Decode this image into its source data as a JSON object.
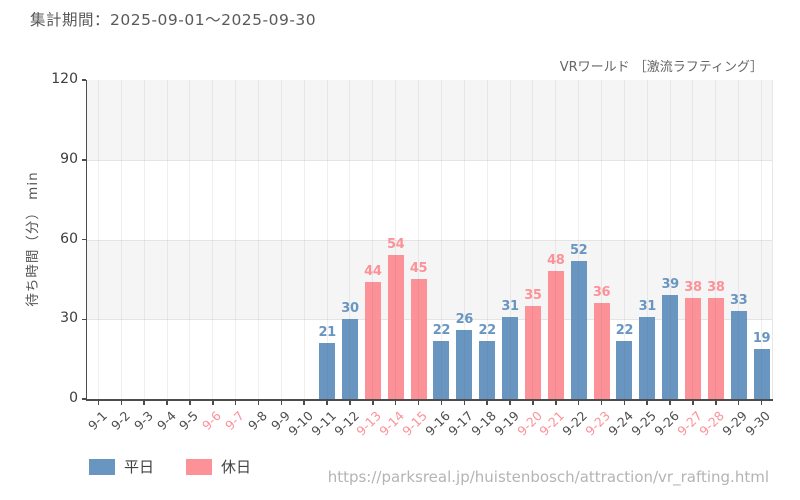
{
  "header": {
    "period_label": "集計期間：2025-09-01～2025-09-30"
  },
  "chart": {
    "title": "VRワールド ［激流ラフティング］",
    "y_axis_label": "待ち時間（分） min"
  },
  "legend": [
    {
      "key": "weekday",
      "label": "平日",
      "color": "#6996c1"
    },
    {
      "key": "holiday",
      "label": "休日",
      "color": "#fc9298"
    }
  ],
  "footer": {
    "url": "https://parksreal.jp/huistenbosch/attraction/vr_rafting.html"
  },
  "chart_data": {
    "type": "bar",
    "title": "VRワールド ［激流ラフティング］",
    "xlabel": "",
    "ylabel": "待ち時間（分） min",
    "ylim": [
      0,
      120
    ],
    "y_ticks": [
      0,
      30,
      60,
      90,
      120
    ],
    "grid": "horizontal lines every 30 with alternating gray bands (30-60, 90-120); vertical gridline per category",
    "legend_position": "bottom-left",
    "categories": [
      "9-1",
      "9-2",
      "9-3",
      "9-4",
      "9-5",
      "9-6",
      "9-7",
      "9-8",
      "9-9",
      "9-10",
      "9-11",
      "9-12",
      "9-13",
      "9-14",
      "9-15",
      "9-16",
      "9-17",
      "9-18",
      "9-19",
      "9-20",
      "9-21",
      "9-22",
      "9-23",
      "9-24",
      "9-25",
      "9-26",
      "9-27",
      "9-28",
      "9-29",
      "9-30"
    ],
    "day_types": [
      "weekday",
      "weekday",
      "weekday",
      "weekday",
      "weekday",
      "holiday",
      "holiday",
      "weekday",
      "weekday",
      "weekday",
      "weekday",
      "weekday",
      "holiday",
      "holiday",
      "holiday",
      "weekday",
      "weekday",
      "weekday",
      "weekday",
      "holiday",
      "holiday",
      "weekday",
      "holiday",
      "weekday",
      "weekday",
      "weekday",
      "holiday",
      "holiday",
      "weekday",
      "weekday"
    ],
    "values": [
      null,
      null,
      null,
      null,
      null,
      null,
      null,
      null,
      null,
      null,
      21,
      30,
      44,
      54,
      45,
      22,
      26,
      22,
      31,
      35,
      48,
      52,
      36,
      22,
      31,
      39,
      38,
      38,
      33,
      19
    ],
    "series_colors": {
      "weekday": "#6996c1",
      "holiday": "#fc9298"
    },
    "tick_label_colors": {
      "weekday": "#4d4d4d",
      "holiday": "#fc9298"
    }
  }
}
